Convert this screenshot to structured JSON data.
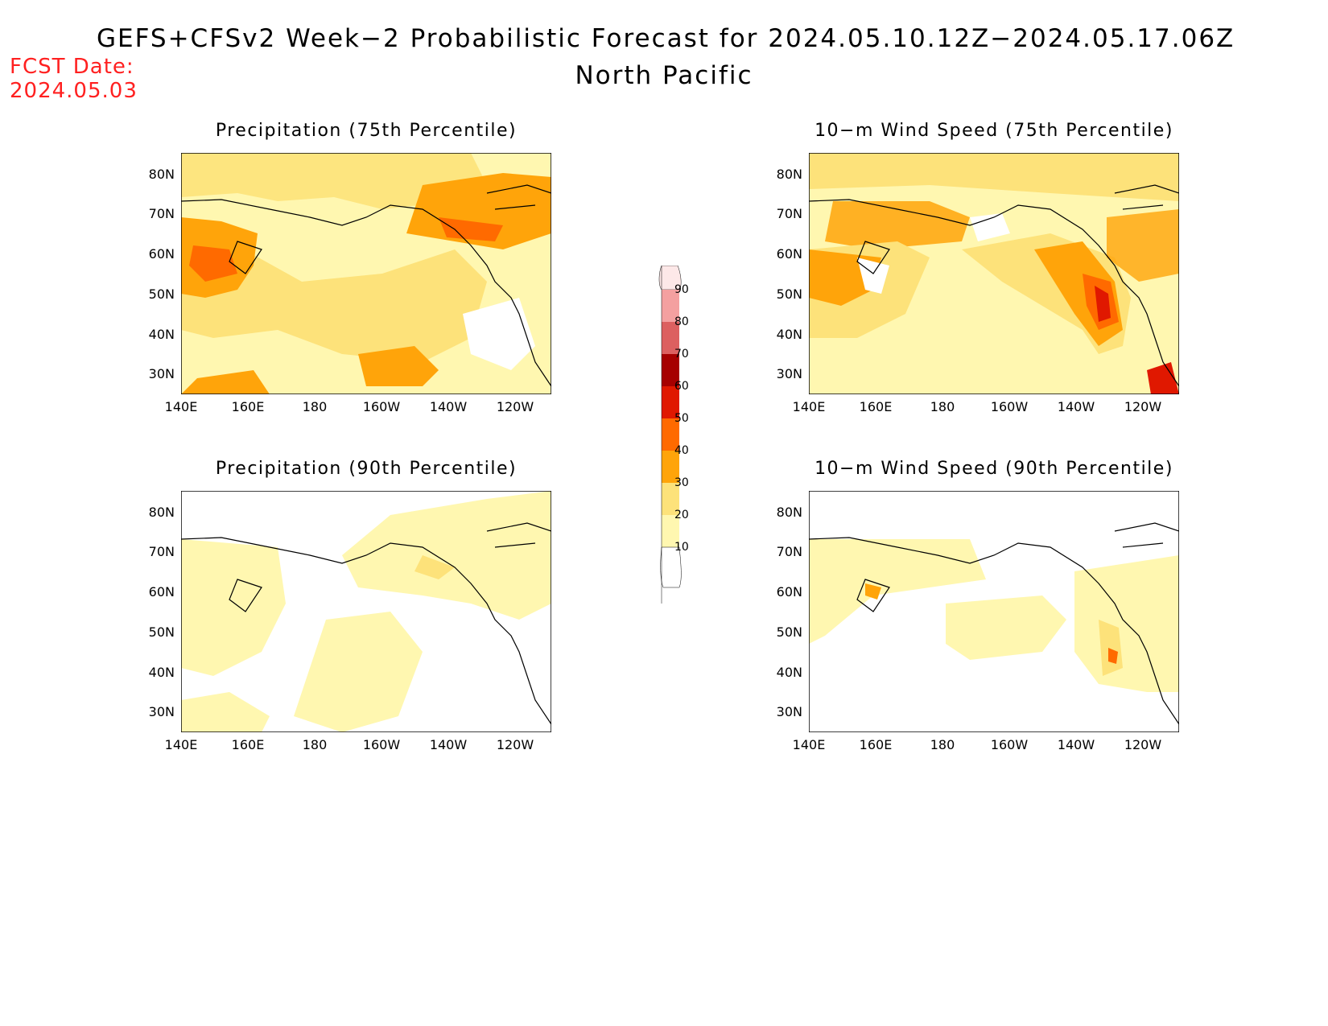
{
  "header": {
    "title_line1": "GEFS+CFSv2 Week−2 Probabilistic Forecast for 2024.05.10.12Z−2024.05.17.06Z",
    "title_line2": "North Pacific",
    "fcst_label": "FCST Date:",
    "fcst_value": "2024.05.03"
  },
  "panels": [
    {
      "id": "precip75",
      "title": "Precipitation (75th Percentile)"
    },
    {
      "id": "wind75",
      "title": "10−m Wind Speed (75th Percentile)"
    },
    {
      "id": "precip90",
      "title": "Precipitation (90th Percentile)"
    },
    {
      "id": "wind90",
      "title": "10−m Wind Speed (90th Percentile)"
    }
  ],
  "lat_labels": [
    "80N",
    "70N",
    "60N",
    "50N",
    "40N",
    "30N"
  ],
  "lon_labels": [
    "140E",
    "160E",
    "180",
    "160W",
    "140W",
    "120W"
  ],
  "colorbar": {
    "labels": [
      "90",
      "80",
      "70",
      "60",
      "50",
      "40",
      "30",
      "20",
      "10"
    ],
    "colors": {
      "10": "#fff7b0",
      "20": "#fde27a",
      "30": "#ffa40a",
      "40": "#ff6a00",
      "50": "#e01800",
      "60": "#a60000",
      "70": "#dc6060",
      "80": "#f4a0a0",
      "90": "#fde8e8"
    }
  }
}
